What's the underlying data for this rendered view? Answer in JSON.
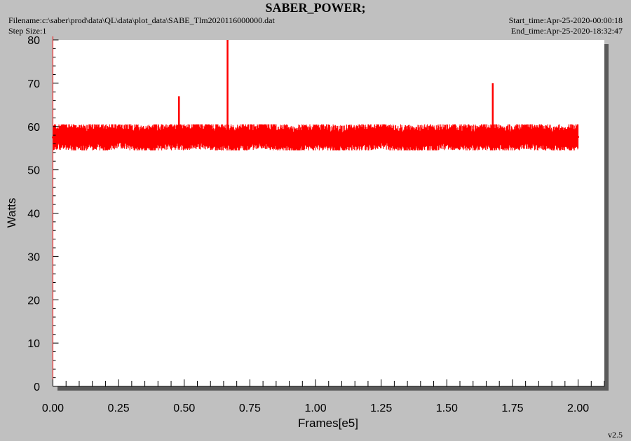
{
  "header": {
    "title": "SABER_POWER;",
    "filename": "Filename:c:\\saber\\prod\\data\\QL\\data\\plot_data\\SABE_Tlm2020116000000.dat",
    "step_size": "Step Size:1",
    "start_time": "Start_time:Apr-25-2020-00:00:18",
    "end_time": "End_time:Apr-25-2020-18:32:47"
  },
  "footer": {
    "version": "v2.5"
  },
  "colors": {
    "series": "#ff0000",
    "plot_bg": "#ffffff",
    "page_bg": "#c0c0c0",
    "shadow": "#5a5a5a"
  },
  "chart_data": {
    "type": "line",
    "xlabel": "Frames[e5]",
    "ylabel": "Watts",
    "xlim": [
      0,
      2.1
    ],
    "ylim": [
      0,
      80
    ],
    "x_ticks": [
      "0.00",
      "0.25",
      "0.50",
      "0.75",
      "1.00",
      "1.25",
      "1.50",
      "1.75",
      "2.00"
    ],
    "y_ticks": [
      "0",
      "10",
      "20",
      "30",
      "40",
      "50",
      "60",
      "70",
      "80"
    ],
    "grid": false,
    "legend": "none",
    "series": [
      {
        "points": [
          [
            0.0,
            57.5
          ],
          [
            0.05,
            57.8
          ],
          [
            0.1,
            57.3
          ],
          [
            0.15,
            57.6
          ],
          [
            0.2,
            57.5
          ],
          [
            0.25,
            58.0
          ],
          [
            0.3,
            57.6
          ],
          [
            0.35,
            57.2
          ],
          [
            0.4,
            57.5
          ],
          [
            0.45,
            57.8
          ],
          [
            0.5,
            57.6
          ],
          [
            0.55,
            58.0
          ],
          [
            0.6,
            57.7
          ],
          [
            0.65,
            57.5
          ],
          [
            0.7,
            57.3
          ],
          [
            0.75,
            57.6
          ],
          [
            0.8,
            58.0
          ],
          [
            0.85,
            57.6
          ],
          [
            0.9,
            57.2
          ],
          [
            0.95,
            57.4
          ],
          [
            1.0,
            57.6
          ],
          [
            1.05,
            57.4
          ],
          [
            1.1,
            57.2
          ],
          [
            1.15,
            57.4
          ],
          [
            1.2,
            57.6
          ],
          [
            1.25,
            58.0
          ],
          [
            1.3,
            57.5
          ],
          [
            1.35,
            57.2
          ],
          [
            1.4,
            57.3
          ],
          [
            1.45,
            57.5
          ],
          [
            1.5,
            57.7
          ],
          [
            1.55,
            57.6
          ],
          [
            1.6,
            57.4
          ],
          [
            1.65,
            57.6
          ],
          [
            1.7,
            57.5
          ],
          [
            1.75,
            57.3
          ],
          [
            1.8,
            57.9
          ],
          [
            1.85,
            57.6
          ],
          [
            1.9,
            57.3
          ],
          [
            1.95,
            57.4
          ],
          [
            2.0,
            57.6
          ]
        ],
        "band": {
          "min": 54.5,
          "max": 60.5
        },
        "spikes": [
          {
            "x": 0.48,
            "y": 67
          },
          {
            "x": 0.665,
            "y": 80
          },
          {
            "x": 1.675,
            "y": 70
          }
        ]
      }
    ]
  }
}
